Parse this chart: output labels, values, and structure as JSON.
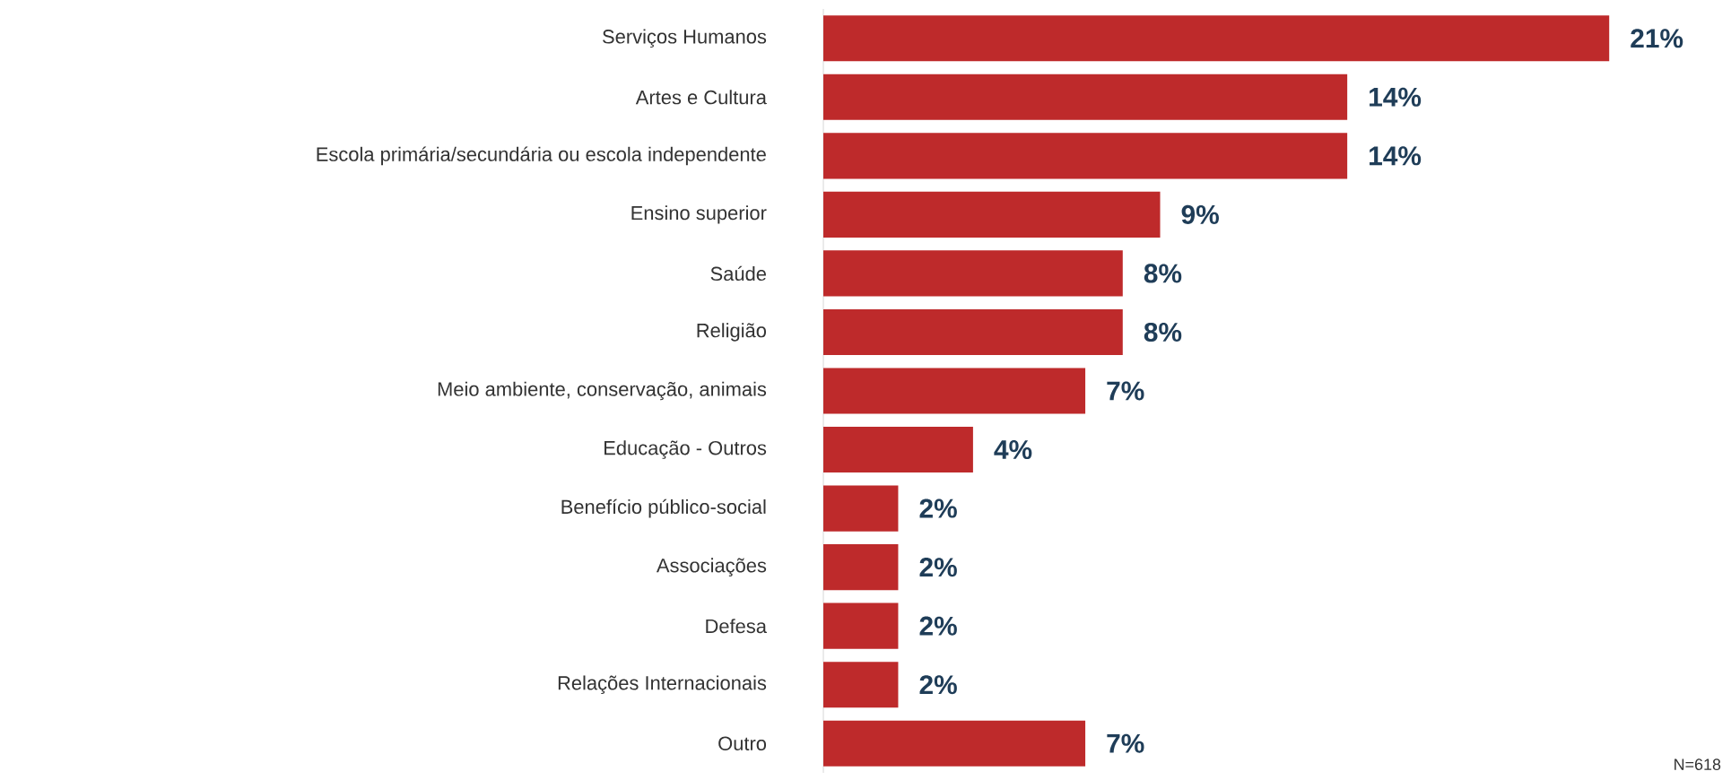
{
  "chart_data": {
    "type": "bar",
    "orientation": "horizontal",
    "categories": [
      "Serviços Humanos",
      "Artes e Cultura",
      "Escola primária/secundária ou escola independente",
      "Ensino superior",
      "Saúde",
      "Religião",
      "Meio ambiente, conservação, animais",
      "Educação - Outros",
      "Benefício público-social",
      "Associações",
      "Defesa",
      "Relações Internacionais",
      "Outro"
    ],
    "values": [
      21,
      14,
      14,
      9,
      8,
      8,
      7,
      4,
      2,
      2,
      2,
      2,
      7
    ],
    "value_labels": [
      "21%",
      "14%",
      "14%",
      "9%",
      "8%",
      "8%",
      "7%",
      "4%",
      "2%",
      "2%",
      "2%",
      "2%",
      "7%"
    ],
    "color": "#be2a2b",
    "annotations": [
      "N=618"
    ]
  }
}
